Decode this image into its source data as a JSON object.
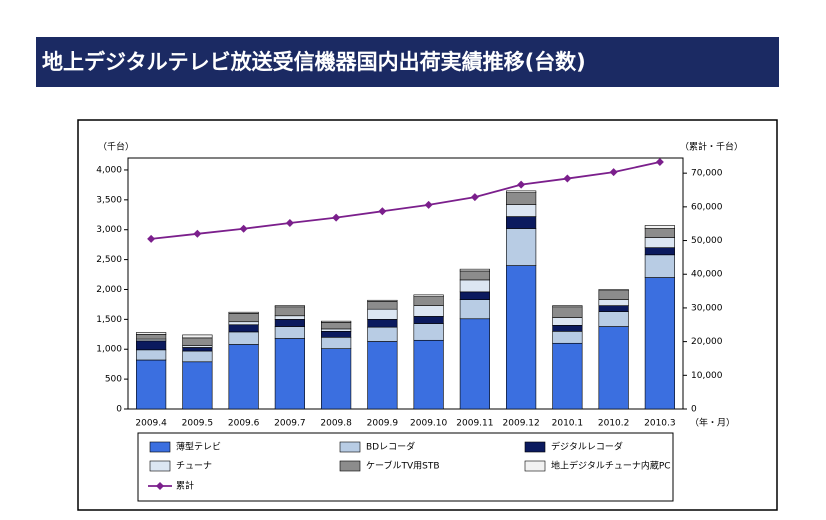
{
  "chart_data": {
    "type": "bar",
    "title": "地上デジタルテレビ放送受信機器国内出荷実績推移(台数)",
    "y_label": "（千台）",
    "y2_label": "（累計・千台）",
    "x_label": "（年・月）",
    "categories": [
      "2009.4",
      "2009.5",
      "2009.6",
      "2009.7",
      "2009.8",
      "2009.9",
      "2009.10",
      "2009.11",
      "2009.12",
      "2010.1",
      "2010.2",
      "2010.3"
    ],
    "series": [
      {
        "name": "薄型テレビ",
        "color": "#3b6fe0",
        "values": [
          820,
          790,
          1080,
          1180,
          1010,
          1130,
          1150,
          1510,
          2400,
          1100,
          1380,
          2200
        ]
      },
      {
        "name": "BDレコーダ",
        "color": "#b8cce4",
        "values": [
          170,
          180,
          210,
          200,
          190,
          240,
          280,
          320,
          620,
          200,
          250,
          380
        ]
      },
      {
        "name": "デジタルレコーダ",
        "color": "#0b1a5e",
        "values": [
          150,
          60,
          120,
          120,
          100,
          130,
          120,
          130,
          200,
          100,
          100,
          120
        ]
      },
      {
        "name": "チューナ",
        "color": "#dce6f2",
        "values": [
          30,
          30,
          50,
          60,
          40,
          170,
          180,
          200,
          200,
          130,
          100,
          170
        ]
      },
      {
        "name": "ケーブルTV用STB",
        "color": "#8c8c8c",
        "values": [
          80,
          130,
          140,
          150,
          110,
          130,
          150,
          150,
          200,
          180,
          150,
          150
        ]
      },
      {
        "name": "地上デジタルチューナ内蔵PC",
        "color": "#f2f2f2",
        "values": [
          30,
          50,
          20,
          20,
          20,
          20,
          30,
          30,
          30,
          20,
          20,
          50
        ]
      },
      {
        "name": "累計",
        "color": "#7b1f8c",
        "type": "line",
        "axis": "y2",
        "values": [
          50500,
          52000,
          53500,
          55200,
          56800,
          58700,
          60600,
          62900,
          66600,
          68400,
          70300,
          73300
        ]
      }
    ],
    "ylim": [
      0,
      4200
    ],
    "yticks": [
      0,
      500,
      {
        "value": 1000,
        "label": "1,000"
      },
      {
        "value": 1500,
        "label": "1,500"
      },
      {
        "value": 2000,
        "label": "2,000"
      },
      {
        "value": 2500,
        "label": "2,500"
      },
      {
        "value": 3000,
        "label": "3,000"
      },
      {
        "value": 3500,
        "label": "3,500"
      },
      {
        "value": 4000,
        "label": "4,000"
      }
    ],
    "y2lim": [
      0,
      74500
    ],
    "y2ticks": [
      0,
      {
        "value": 10000,
        "label": "10,000"
      },
      {
        "value": 20000,
        "label": "20,000"
      },
      {
        "value": 30000,
        "label": "30,000"
      },
      {
        "value": 40000,
        "label": "40,000"
      },
      {
        "value": 50000,
        "label": "50,000"
      },
      {
        "value": 60000,
        "label": "60,000"
      },
      {
        "value": 70000,
        "label": "70,000"
      }
    ]
  }
}
